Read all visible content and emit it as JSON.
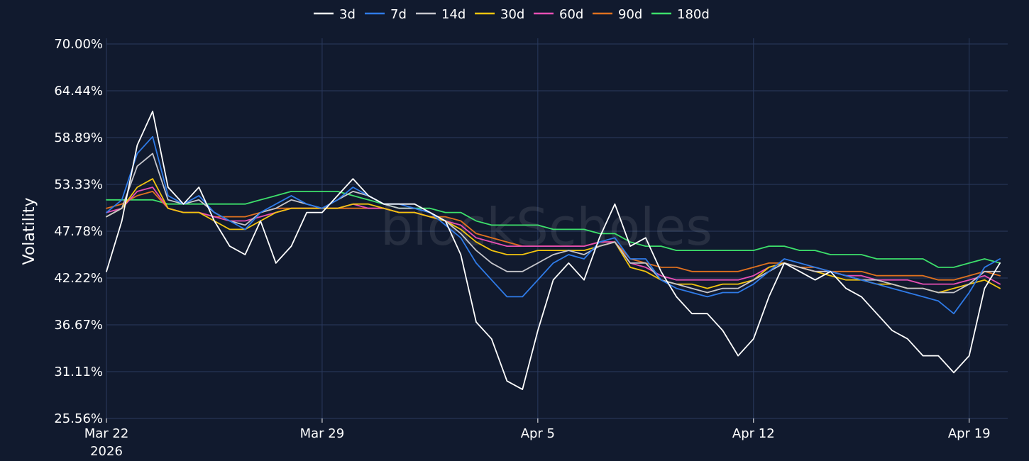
{
  "chart_data": {
    "type": "line",
    "ylabel": "Volatility",
    "xlabel": "",
    "watermark": "blockScholes",
    "yticks": [
      "25.56%",
      "31.11%",
      "36.67%",
      "42.22%",
      "47.78%",
      "53.33%",
      "58.89%",
      "64.44%",
      "70.00%"
    ],
    "ylim": [
      25.56,
      70.0
    ],
    "xlim": [
      "2026-03-22",
      "2026-04-20 06:00"
    ],
    "xticks": [
      {
        "label": "Mar 22",
        "sublabel": "2026",
        "date": "2026-03-22"
      },
      {
        "label": "Mar 29",
        "sublabel": "",
        "date": "2026-03-29"
      },
      {
        "label": "Apr 5",
        "sublabel": "",
        "date": "2026-04-05"
      },
      {
        "label": "Apr 12",
        "sublabel": "",
        "date": "2026-04-12"
      },
      {
        "label": "Apr 19",
        "sublabel": "",
        "date": "2026-04-19"
      }
    ],
    "grid": true,
    "legend_position": "top-center",
    "x": [
      "2026-03-22",
      "2026-03-22 12:00",
      "2026-03-23",
      "2026-03-23 12:00",
      "2026-03-24",
      "2026-03-24 12:00",
      "2026-03-25",
      "2026-03-25 12:00",
      "2026-03-26",
      "2026-03-26 12:00",
      "2026-03-27",
      "2026-03-27 12:00",
      "2026-03-28",
      "2026-03-28 12:00",
      "2026-03-29",
      "2026-03-29 12:00",
      "2026-03-30",
      "2026-03-30 12:00",
      "2026-03-31",
      "2026-03-31 12:00",
      "2026-04-01",
      "2026-04-01 12:00",
      "2026-04-02",
      "2026-04-02 12:00",
      "2026-04-03",
      "2026-04-03 12:00",
      "2026-04-04",
      "2026-04-04 12:00",
      "2026-04-05",
      "2026-04-05 12:00",
      "2026-04-06",
      "2026-04-06 12:00",
      "2026-04-07",
      "2026-04-07 12:00",
      "2026-04-08",
      "2026-04-08 12:00",
      "2026-04-09",
      "2026-04-09 12:00",
      "2026-04-10",
      "2026-04-10 12:00",
      "2026-04-11",
      "2026-04-11 12:00",
      "2026-04-12",
      "2026-04-12 12:00",
      "2026-04-13",
      "2026-04-13 12:00",
      "2026-04-14",
      "2026-04-14 12:00",
      "2026-04-15",
      "2026-04-15 12:00",
      "2026-04-16",
      "2026-04-16 12:00",
      "2026-04-17",
      "2026-04-17 12:00",
      "2026-04-18",
      "2026-04-18 12:00",
      "2026-04-19",
      "2026-04-19 12:00",
      "2026-04-20"
    ],
    "series": [
      {
        "name": "3d",
        "color": "#ffffff",
        "values": [
          43.0,
          49.0,
          58.0,
          62.0,
          53.0,
          51.0,
          53.0,
          49.0,
          46.0,
          45.0,
          49.0,
          44.0,
          46.0,
          50.0,
          50.0,
          52.0,
          54.0,
          52.0,
          51.0,
          51.0,
          51.0,
          50.0,
          49.0,
          45.0,
          37.0,
          35.0,
          30.0,
          29.0,
          36.0,
          42.0,
          44.0,
          42.0,
          47.0,
          51.0,
          46.0,
          47.0,
          43.0,
          40.0,
          38.0,
          38.0,
          36.0,
          33.0,
          35.0,
          40.0,
          44.0,
          43.0,
          42.0,
          43.0,
          41.0,
          40.0,
          38.0,
          36.0,
          35.0,
          33.0,
          33.0,
          31.0,
          33.0,
          41.0,
          44.0
        ]
      },
      {
        "name": "7d",
        "color": "#2f7be8",
        "values": [
          50.0,
          51.5,
          57.0,
          59.0,
          52.0,
          51.0,
          52.0,
          50.0,
          49.0,
          48.0,
          50.0,
          51.0,
          52.0,
          51.0,
          50.5,
          51.5,
          53.0,
          52.0,
          51.0,
          51.0,
          50.5,
          50.0,
          48.5,
          47.0,
          44.0,
          42.0,
          40.0,
          40.0,
          42.0,
          44.0,
          45.0,
          44.5,
          46.5,
          47.0,
          44.5,
          44.5,
          42.0,
          41.0,
          40.5,
          40.0,
          40.5,
          40.5,
          41.5,
          43.0,
          44.5,
          44.0,
          43.5,
          43.0,
          42.5,
          42.0,
          41.5,
          41.0,
          40.5,
          40.0,
          39.5,
          38.0,
          40.5,
          43.5,
          44.5
        ]
      },
      {
        "name": "14d",
        "color": "#c6c6cc",
        "values": [
          49.5,
          50.5,
          55.5,
          57.0,
          51.5,
          51.0,
          51.5,
          50.0,
          49.0,
          48.5,
          50.0,
          50.5,
          51.5,
          51.0,
          50.5,
          51.5,
          52.5,
          52.0,
          51.0,
          50.5,
          50.5,
          50.0,
          49.0,
          47.5,
          45.5,
          44.0,
          43.0,
          43.0,
          44.0,
          45.0,
          45.5,
          45.0,
          46.0,
          46.5,
          44.0,
          44.0,
          42.0,
          41.5,
          41.0,
          40.5,
          41.0,
          41.0,
          42.0,
          43.0,
          44.0,
          43.5,
          43.0,
          43.0,
          42.5,
          42.0,
          42.0,
          41.5,
          41.0,
          41.0,
          40.5,
          40.5,
          41.5,
          43.0,
          43.0
        ]
      },
      {
        "name": "30d",
        "color": "#f2c40f",
        "values": [
          49.5,
          50.5,
          53.0,
          54.0,
          50.5,
          50.0,
          50.0,
          49.0,
          48.0,
          48.0,
          49.0,
          50.0,
          50.5,
          50.5,
          50.5,
          50.5,
          51.0,
          51.0,
          50.5,
          50.0,
          50.0,
          49.5,
          49.0,
          48.0,
          46.5,
          45.5,
          45.0,
          45.0,
          45.5,
          45.5,
          45.5,
          45.5,
          46.0,
          46.5,
          43.5,
          43.0,
          42.0,
          41.5,
          41.5,
          41.0,
          41.5,
          41.5,
          42.0,
          43.5,
          44.0,
          43.5,
          43.0,
          42.5,
          42.0,
          42.0,
          41.5,
          41.5,
          41.0,
          41.0,
          40.5,
          41.0,
          41.5,
          42.0,
          41.0
        ]
      },
      {
        "name": "60d",
        "color": "#e84fb4",
        "values": [
          50.0,
          50.5,
          52.5,
          53.0,
          50.5,
          50.0,
          50.0,
          49.5,
          49.0,
          49.0,
          49.5,
          50.0,
          50.5,
          50.5,
          50.5,
          50.5,
          51.0,
          50.5,
          50.5,
          50.0,
          50.0,
          49.5,
          49.0,
          48.5,
          47.0,
          46.5,
          46.0,
          46.0,
          46.0,
          46.0,
          46.0,
          46.0,
          46.5,
          46.5,
          44.0,
          43.5,
          42.5,
          42.0,
          42.0,
          42.0,
          42.0,
          42.0,
          42.5,
          43.5,
          44.0,
          43.5,
          43.0,
          43.0,
          42.5,
          42.5,
          42.0,
          42.0,
          42.0,
          41.5,
          41.5,
          41.5,
          42.0,
          42.5,
          41.5
        ]
      },
      {
        "name": "90d",
        "color": "#e0711f",
        "values": [
          50.5,
          51.0,
          52.0,
          52.5,
          50.5,
          50.0,
          50.0,
          49.5,
          49.5,
          49.5,
          50.0,
          50.5,
          50.5,
          50.5,
          50.5,
          50.5,
          50.5,
          50.5,
          50.5,
          50.0,
          50.0,
          49.5,
          49.5,
          49.0,
          47.5,
          47.0,
          46.5,
          46.0,
          46.0,
          46.0,
          46.0,
          46.0,
          46.5,
          46.5,
          44.5,
          44.0,
          43.5,
          43.5,
          43.0,
          43.0,
          43.0,
          43.0,
          43.5,
          44.0,
          44.0,
          43.5,
          43.5,
          43.0,
          43.0,
          43.0,
          42.5,
          42.5,
          42.5,
          42.5,
          42.0,
          42.0,
          42.5,
          43.0,
          42.5
        ]
      },
      {
        "name": "180d",
        "color": "#3de06b",
        "values": [
          51.5,
          51.5,
          51.5,
          51.5,
          51.0,
          51.0,
          51.0,
          51.0,
          51.0,
          51.0,
          51.5,
          52.0,
          52.5,
          52.5,
          52.5,
          52.5,
          52.0,
          51.5,
          51.0,
          50.5,
          50.5,
          50.5,
          50.0,
          50.0,
          49.0,
          48.5,
          48.5,
          48.5,
          48.5,
          48.0,
          48.0,
          48.0,
          47.5,
          47.5,
          46.5,
          46.0,
          46.0,
          45.5,
          45.5,
          45.5,
          45.5,
          45.5,
          45.5,
          46.0,
          46.0,
          45.5,
          45.5,
          45.0,
          45.0,
          45.0,
          44.5,
          44.5,
          44.5,
          44.5,
          43.5,
          43.5,
          44.0,
          44.5,
          44.0
        ]
      }
    ]
  }
}
